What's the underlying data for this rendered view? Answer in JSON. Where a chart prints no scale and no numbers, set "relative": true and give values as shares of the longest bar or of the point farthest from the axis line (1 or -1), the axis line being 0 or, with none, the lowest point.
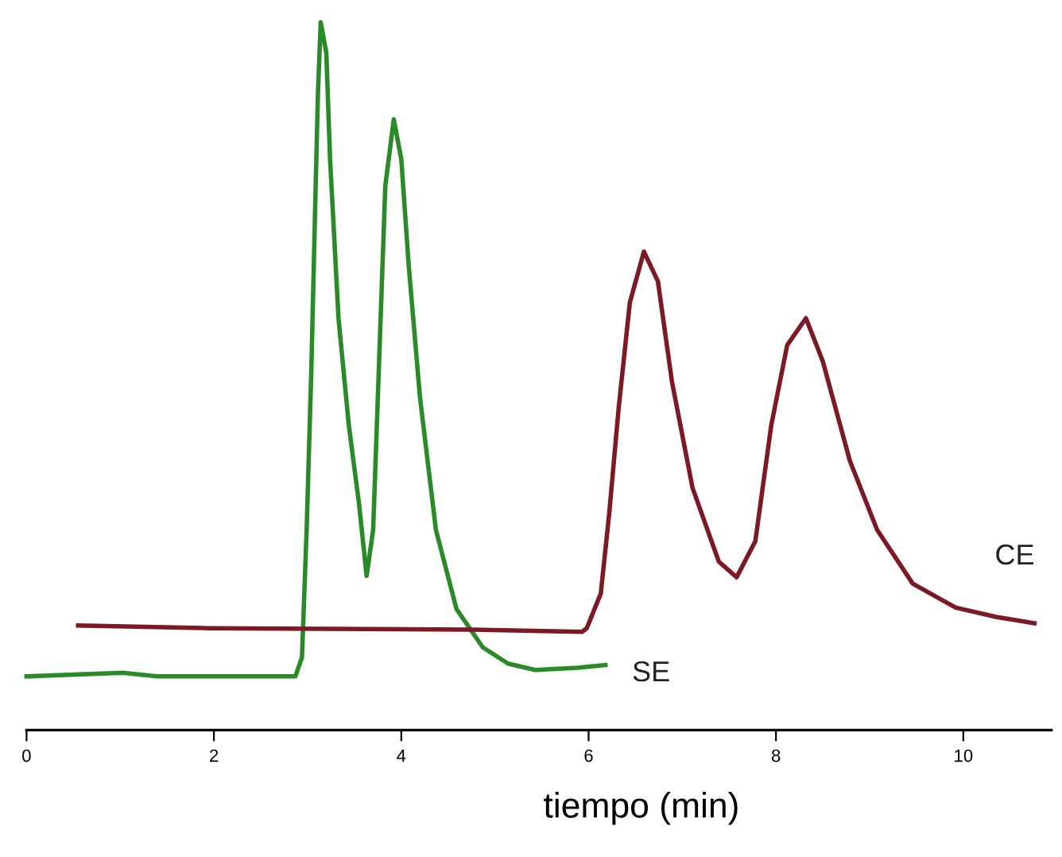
{
  "chart_data": {
    "type": "line",
    "relative": true,
    "xlabel": "tiempo (min)",
    "xlim": [
      0,
      10.94
    ],
    "xticks": [
      0,
      2,
      4,
      6,
      8,
      10
    ],
    "tick_labels": "x",
    "grid": false,
    "legend": false,
    "marker": "none",
    "line_style": "solid",
    "series": [
      {
        "name": "SE",
        "color": "#2a8a2a",
        "x": [
          0,
          1.03,
          1.39,
          2.87,
          2.94,
          2.99,
          3.04,
          3.08,
          3.11,
          3.14,
          3.2,
          3.24,
          3.33,
          3.44,
          3.55,
          3.63,
          3.7,
          3.76,
          3.83,
          3.92,
          4.0,
          4.08,
          4.2,
          4.37,
          4.59,
          4.87,
          5.14,
          5.43,
          5.88,
          6.18
        ],
        "values": [
          0.076,
          0.081,
          0.076,
          0.076,
          0.103,
          0.283,
          0.508,
          0.733,
          0.897,
          1.0,
          0.957,
          0.807,
          0.582,
          0.431,
          0.319,
          0.218,
          0.283,
          0.508,
          0.769,
          0.863,
          0.807,
          0.656,
          0.47,
          0.283,
          0.171,
          0.117,
          0.094,
          0.085,
          0.088,
          0.092
        ]
      },
      {
        "name": "CE",
        "color": "#7b1a24",
        "x": [
          0.55,
          1.95,
          4.76,
          5.93,
          5.98,
          6.13,
          6.22,
          6.32,
          6.44,
          6.59,
          6.74,
          6.89,
          7.11,
          7.39,
          7.58,
          7.78,
          7.95,
          8.12,
          8.32,
          8.5,
          8.79,
          9.08,
          9.46,
          9.92,
          10.35,
          10.76
        ],
        "values": [
          0.148,
          0.144,
          0.142,
          0.139,
          0.144,
          0.193,
          0.306,
          0.454,
          0.604,
          0.676,
          0.634,
          0.492,
          0.342,
          0.238,
          0.216,
          0.267,
          0.431,
          0.544,
          0.582,
          0.521,
          0.38,
          0.283,
          0.207,
          0.173,
          0.16,
          0.151
        ]
      }
    ]
  }
}
